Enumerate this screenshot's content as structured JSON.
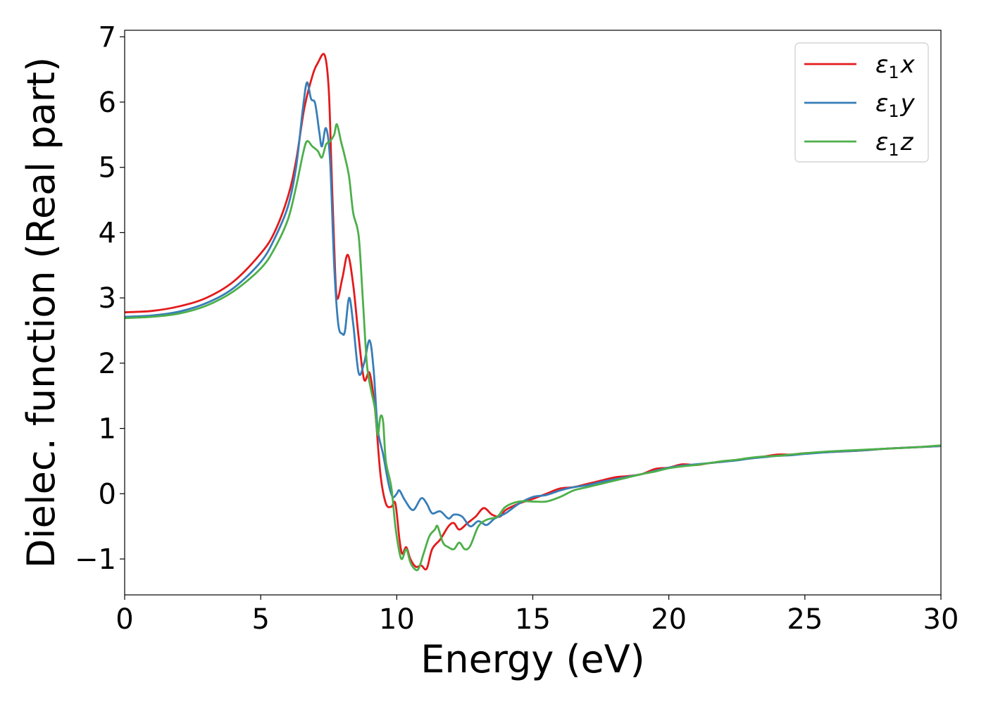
{
  "chart_data": {
    "type": "line",
    "xlabel": "Energy (eV)",
    "ylabel": "Dielec. function (Real part)",
    "xlim": [
      0,
      30
    ],
    "ylim": [
      -1.55,
      7.1
    ],
    "x_ticks": [
      0,
      5,
      10,
      15,
      20,
      25,
      30
    ],
    "x_tick_labels": [
      "0",
      "5",
      "10",
      "15",
      "20",
      "25",
      "30"
    ],
    "y_ticks": [
      -1,
      0,
      1,
      2,
      3,
      4,
      5,
      6,
      7
    ],
    "y_tick_labels": [
      "−1",
      "0",
      "1",
      "2",
      "3",
      "4",
      "5",
      "6",
      "7"
    ],
    "grid": false,
    "legend_position": "top-right",
    "series": [
      {
        "name": "ε₁x",
        "symbol": "ε",
        "subscript": "1",
        "component": "x",
        "color": "#e41a1c",
        "points": [
          [
            0,
            2.78
          ],
          [
            1,
            2.8
          ],
          [
            2,
            2.87
          ],
          [
            3,
            3.0
          ],
          [
            4,
            3.25
          ],
          [
            5,
            3.68
          ],
          [
            5.5,
            4.0
          ],
          [
            6,
            4.55
          ],
          [
            6.3,
            5.1
          ],
          [
            6.6,
            5.9
          ],
          [
            6.9,
            6.4
          ],
          [
            7.1,
            6.6
          ],
          [
            7.35,
            6.72
          ],
          [
            7.5,
            6.2
          ],
          [
            7.6,
            5.0
          ],
          [
            7.7,
            3.8
          ],
          [
            7.8,
            3.0
          ],
          [
            8.0,
            3.3
          ],
          [
            8.2,
            3.66
          ],
          [
            8.4,
            3.2
          ],
          [
            8.6,
            2.4
          ],
          [
            8.8,
            1.75
          ],
          [
            9.0,
            1.85
          ],
          [
            9.2,
            1.3
          ],
          [
            9.4,
            0.3
          ],
          [
            9.6,
            -0.15
          ],
          [
            9.8,
            -0.2
          ],
          [
            9.95,
            -0.15
          ],
          [
            10.1,
            -0.7
          ],
          [
            10.2,
            -0.92
          ],
          [
            10.35,
            -0.82
          ],
          [
            10.5,
            -1.0
          ],
          [
            10.7,
            -1.12
          ],
          [
            10.9,
            -1.1
          ],
          [
            11.1,
            -1.15
          ],
          [
            11.3,
            -0.85
          ],
          [
            11.6,
            -0.7
          ],
          [
            11.9,
            -0.5
          ],
          [
            12.1,
            -0.45
          ],
          [
            12.3,
            -0.55
          ],
          [
            12.6,
            -0.45
          ],
          [
            12.9,
            -0.35
          ],
          [
            13.2,
            -0.22
          ],
          [
            13.5,
            -0.32
          ],
          [
            13.8,
            -0.35
          ],
          [
            14.0,
            -0.25
          ],
          [
            14.5,
            -0.15
          ],
          [
            15,
            -0.08
          ],
          [
            15.5,
            0.0
          ],
          [
            16,
            0.08
          ],
          [
            16.5,
            0.1
          ],
          [
            17,
            0.15
          ],
          [
            17.5,
            0.2
          ],
          [
            18,
            0.25
          ],
          [
            18.5,
            0.27
          ],
          [
            19,
            0.3
          ],
          [
            19.5,
            0.38
          ],
          [
            20,
            0.4
          ],
          [
            20.5,
            0.45
          ],
          [
            21,
            0.44
          ],
          [
            21.5,
            0.47
          ],
          [
            22,
            0.49
          ],
          [
            22.5,
            0.52
          ],
          [
            23,
            0.54
          ],
          [
            23.5,
            0.57
          ],
          [
            24,
            0.6
          ],
          [
            24.5,
            0.6
          ],
          [
            25,
            0.62
          ],
          [
            26,
            0.64
          ],
          [
            27,
            0.66
          ],
          [
            28,
            0.69
          ],
          [
            29,
            0.71
          ],
          [
            30,
            0.73
          ]
        ]
      },
      {
        "name": "ε₁y",
        "symbol": "ε",
        "subscript": "1",
        "component": "y",
        "color": "#377eb8",
        "points": [
          [
            0,
            2.71
          ],
          [
            1,
            2.73
          ],
          [
            2,
            2.79
          ],
          [
            3,
            2.92
          ],
          [
            4,
            3.15
          ],
          [
            5,
            3.55
          ],
          [
            5.5,
            3.9
          ],
          [
            6,
            4.4
          ],
          [
            6.3,
            5.0
          ],
          [
            6.55,
            5.9
          ],
          [
            6.7,
            6.3
          ],
          [
            6.85,
            6.05
          ],
          [
            7.0,
            5.98
          ],
          [
            7.15,
            5.55
          ],
          [
            7.25,
            5.32
          ],
          [
            7.4,
            5.6
          ],
          [
            7.55,
            5.1
          ],
          [
            7.7,
            3.5
          ],
          [
            7.85,
            2.6
          ],
          [
            8.0,
            2.45
          ],
          [
            8.1,
            2.5
          ],
          [
            8.25,
            3.0
          ],
          [
            8.4,
            2.6
          ],
          [
            8.6,
            1.85
          ],
          [
            8.8,
            2.0
          ],
          [
            9.0,
            2.35
          ],
          [
            9.15,
            1.9
          ],
          [
            9.3,
            1.0
          ],
          [
            9.5,
            0.6
          ],
          [
            9.7,
            0.15
          ],
          [
            9.85,
            -0.05
          ],
          [
            10.0,
            0.0
          ],
          [
            10.1,
            0.05
          ],
          [
            10.3,
            -0.1
          ],
          [
            10.6,
            -0.25
          ],
          [
            10.9,
            -0.07
          ],
          [
            11.1,
            -0.15
          ],
          [
            11.3,
            -0.3
          ],
          [
            11.6,
            -0.27
          ],
          [
            11.9,
            -0.38
          ],
          [
            12.1,
            -0.32
          ],
          [
            12.4,
            -0.35
          ],
          [
            12.7,
            -0.5
          ],
          [
            13.0,
            -0.42
          ],
          [
            13.3,
            -0.48
          ],
          [
            13.6,
            -0.38
          ],
          [
            14.0,
            -0.3
          ],
          [
            14.5,
            -0.15
          ],
          [
            15,
            -0.05
          ],
          [
            15.5,
            -0.02
          ],
          [
            16,
            0.05
          ],
          [
            16.5,
            0.1
          ],
          [
            17,
            0.13
          ],
          [
            17.5,
            0.18
          ],
          [
            18,
            0.22
          ],
          [
            18.5,
            0.26
          ],
          [
            19,
            0.3
          ],
          [
            19.5,
            0.35
          ],
          [
            20,
            0.4
          ],
          [
            20.5,
            0.43
          ],
          [
            21,
            0.45
          ],
          [
            21.5,
            0.47
          ],
          [
            22,
            0.49
          ],
          [
            22.5,
            0.51
          ],
          [
            23,
            0.54
          ],
          [
            23.5,
            0.56
          ],
          [
            24,
            0.58
          ],
          [
            24.5,
            0.59
          ],
          [
            25,
            0.61
          ],
          [
            26,
            0.64
          ],
          [
            27,
            0.66
          ],
          [
            28,
            0.69
          ],
          [
            29,
            0.71
          ],
          [
            30,
            0.73
          ]
        ]
      },
      {
        "name": "ε₁z",
        "symbol": "ε",
        "subscript": "1",
        "component": "z",
        "color": "#4daf4a",
        "points": [
          [
            0,
            2.69
          ],
          [
            1,
            2.71
          ],
          [
            2,
            2.76
          ],
          [
            3,
            2.88
          ],
          [
            4,
            3.1
          ],
          [
            5,
            3.45
          ],
          [
            5.5,
            3.75
          ],
          [
            6,
            4.2
          ],
          [
            6.3,
            4.7
          ],
          [
            6.55,
            5.2
          ],
          [
            6.7,
            5.4
          ],
          [
            6.9,
            5.32
          ],
          [
            7.1,
            5.25
          ],
          [
            7.25,
            5.15
          ],
          [
            7.4,
            5.35
          ],
          [
            7.55,
            5.4
          ],
          [
            7.7,
            5.5
          ],
          [
            7.8,
            5.66
          ],
          [
            7.95,
            5.4
          ],
          [
            8.1,
            5.15
          ],
          [
            8.25,
            4.85
          ],
          [
            8.4,
            4.3
          ],
          [
            8.6,
            3.95
          ],
          [
            8.75,
            3.0
          ],
          [
            8.9,
            2.0
          ],
          [
            9.05,
            1.6
          ],
          [
            9.2,
            1.3
          ],
          [
            9.3,
            0.9
          ],
          [
            9.4,
            1.18
          ],
          [
            9.5,
            1.1
          ],
          [
            9.6,
            0.5
          ],
          [
            9.8,
            0.1
          ],
          [
            9.95,
            -0.5
          ],
          [
            10.1,
            -0.9
          ],
          [
            10.2,
            -1.0
          ],
          [
            10.35,
            -0.85
          ],
          [
            10.5,
            -1.05
          ],
          [
            10.65,
            -1.15
          ],
          [
            10.8,
            -1.15
          ],
          [
            11.0,
            -0.9
          ],
          [
            11.2,
            -0.65
          ],
          [
            11.4,
            -0.55
          ],
          [
            11.5,
            -0.5
          ],
          [
            11.7,
            -0.75
          ],
          [
            11.9,
            -0.82
          ],
          [
            12.1,
            -0.85
          ],
          [
            12.3,
            -0.75
          ],
          [
            12.5,
            -0.85
          ],
          [
            12.7,
            -0.8
          ],
          [
            13.0,
            -0.5
          ],
          [
            13.3,
            -0.4
          ],
          [
            13.7,
            -0.35
          ],
          [
            14.0,
            -0.2
          ],
          [
            14.5,
            -0.12
          ],
          [
            15,
            -0.12
          ],
          [
            15.5,
            -0.12
          ],
          [
            16,
            -0.05
          ],
          [
            16.5,
            0.05
          ],
          [
            17,
            0.1
          ],
          [
            17.5,
            0.15
          ],
          [
            18,
            0.2
          ],
          [
            18.5,
            0.25
          ],
          [
            19,
            0.3
          ],
          [
            19.5,
            0.34
          ],
          [
            20,
            0.39
          ],
          [
            20.5,
            0.42
          ],
          [
            21,
            0.44
          ],
          [
            21.5,
            0.47
          ],
          [
            22,
            0.5
          ],
          [
            22.5,
            0.52
          ],
          [
            23,
            0.55
          ],
          [
            23.5,
            0.57
          ],
          [
            24,
            0.58
          ],
          [
            24.5,
            0.6
          ],
          [
            25,
            0.62
          ],
          [
            26,
            0.65
          ],
          [
            27,
            0.67
          ],
          [
            28,
            0.69
          ],
          [
            29,
            0.71
          ],
          [
            30,
            0.74
          ]
        ]
      }
    ]
  }
}
